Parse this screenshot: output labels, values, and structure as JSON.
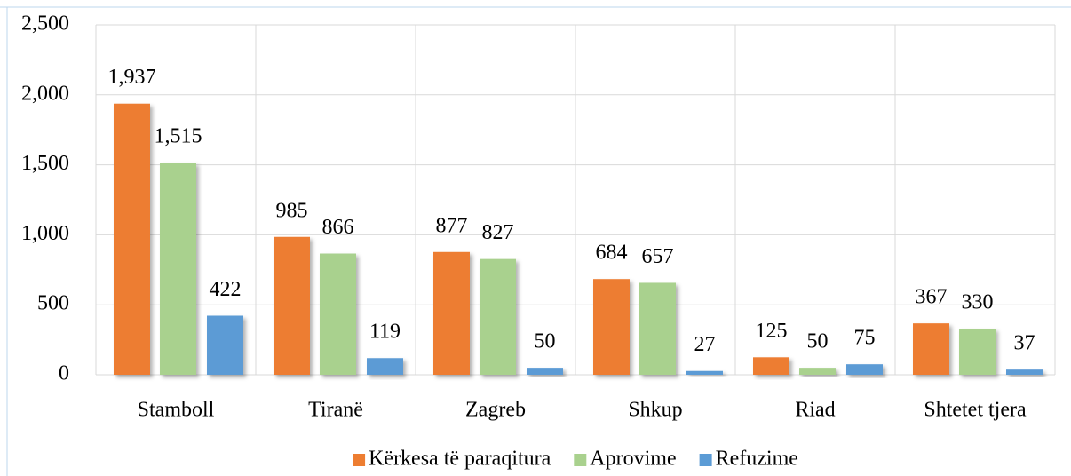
{
  "chart_data": {
    "type": "bar",
    "categories": [
      "Stamboll",
      "Tiranë",
      "Zagreb",
      "Shkup",
      "Riad",
      "Shtetet tjera"
    ],
    "series": [
      {
        "name": "Kërkesa të paraqitura",
        "color": "#ED7D31",
        "values": [
          1937,
          985,
          877,
          684,
          125,
          367
        ],
        "value_labels": [
          "1,937",
          "985",
          "877",
          "684",
          "125",
          "367"
        ]
      },
      {
        "name": "Aprovime",
        "color": "#A9D18E",
        "values": [
          1515,
          866,
          827,
          657,
          50,
          330
        ],
        "value_labels": [
          "1,515",
          "866",
          "827",
          "657",
          "50",
          "330"
        ]
      },
      {
        "name": "Refuzime",
        "color": "#5B9BD5",
        "values": [
          422,
          119,
          50,
          27,
          75,
          37
        ],
        "value_labels": [
          "422",
          "119",
          "50",
          "27",
          "75",
          "37"
        ]
      }
    ],
    "ylim": [
      0,
      2500
    ],
    "yticks": [
      0,
      500,
      {
        "value": 1000,
        "label": "1,000"
      },
      {
        "value": 1500,
        "label": "1,500"
      },
      {
        "value": 2000,
        "label": "2,000"
      },
      {
        "value": 2500,
        "label": "2,500"
      }
    ],
    "grid": true,
    "legend": "bottom"
  }
}
